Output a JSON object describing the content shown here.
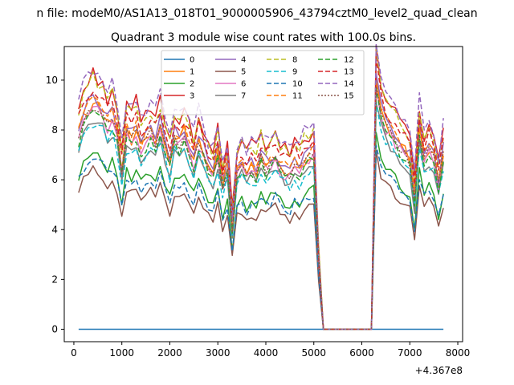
{
  "figure": {
    "suptitle": "n file: modeM0/AS1A13_018T01_9000005906_43794cztM0_level2_quad_clean",
    "title": "Quadrant 3 module wise count rates with 100.0s bins."
  },
  "chart_data": {
    "type": "line",
    "title": "Quadrant 3 module wise count rates with 100.0s bins.",
    "xlabel": "",
    "ylabel": "",
    "x_offset_label": "+4.367e8",
    "xlim": [
      -200,
      8100
    ],
    "ylim": [
      -0.5,
      11.35
    ],
    "xticks": [
      0,
      1000,
      2000,
      3000,
      4000,
      5000,
      6000,
      7000,
      8000
    ],
    "xtick_labels": [
      "0",
      "1000",
      "2000",
      "3000",
      "4000",
      "5000",
      "6000",
      "7000",
      "8000"
    ],
    "yticks": [
      0,
      2,
      4,
      6,
      8,
      10
    ],
    "ytick_labels": [
      "0",
      "2",
      "4",
      "6",
      "8",
      "10"
    ],
    "grid": false,
    "legend_position": "upper center",
    "legend_columns": 4,
    "base_shape": {
      "x": [
        100,
        200,
        300,
        400,
        500,
        600,
        700,
        800,
        900,
        1000,
        1100,
        1200,
        1300,
        1400,
        1500,
        1600,
        1700,
        1800,
        1900,
        2000,
        2100,
        2200,
        2300,
        2400,
        2500,
        2600,
        2700,
        2800,
        2900,
        3000,
        3100,
        3200,
        3300,
        3400,
        3500,
        3600,
        3700,
        3800,
        3900,
        4000,
        4100,
        4200,
        4300,
        4400,
        4500,
        4600,
        4700,
        4800,
        4900,
        5000,
        5100,
        5200,
        5300,
        5400,
        5500,
        5600,
        5700,
        5800,
        5900,
        6000,
        6100,
        6200,
        6300,
        6400,
        6500,
        6600,
        6700,
        6800,
        6900,
        7000,
        7100,
        7200,
        7300,
        7400,
        7500,
        7600,
        7700
      ],
      "y": [
        5.5,
        6.0,
        6.2,
        6.4,
        6.3,
        6.1,
        5.8,
        6.0,
        5.6,
        4.5,
        5.6,
        5.4,
        5.7,
        5.2,
        5.4,
        5.6,
        5.3,
        5.7,
        5.2,
        4.7,
        5.5,
        5.3,
        5.6,
        5.1,
        4.8,
        5.4,
        5.0,
        4.6,
        4.4,
        5.0,
        4.1,
        4.6,
        2.9,
        4.5,
        4.7,
        4.4,
        4.6,
        4.5,
        4.9,
        4.6,
        4.7,
        4.9,
        4.6,
        4.5,
        4.4,
        4.7,
        4.5,
        4.8,
        4.9,
        5.0,
        2.0,
        0.0,
        0.0,
        0.0,
        0.0,
        0.0,
        0.0,
        0.0,
        0.0,
        0.0,
        0.0,
        0.0,
        7.0,
        6.2,
        5.8,
        5.6,
        5.4,
        5.2,
        5.0,
        4.8,
        3.7,
        5.6,
        4.9,
        5.1,
        4.9,
        4.1,
        5.0
      ]
    },
    "series": [
      {
        "name": "0",
        "color": "#1f77b4",
        "dash": "",
        "constant": 0
      },
      {
        "name": "1",
        "color": "#ff7f0e",
        "dash": "",
        "scale": 1.42,
        "seed": 1
      },
      {
        "name": "2",
        "color": "#2ca02c",
        "dash": "",
        "scale": 1.12,
        "seed": 2
      },
      {
        "name": "3",
        "color": "#d62728",
        "dash": "",
        "scale": 1.6,
        "seed": 3
      },
      {
        "name": "4",
        "color": "#9467bd",
        "dash": "",
        "scale": 1.46,
        "seed": 4
      },
      {
        "name": "5",
        "color": "#8c564b",
        "dash": "",
        "scale": 1.0,
        "seed": 5
      },
      {
        "name": "6",
        "color": "#e377c2",
        "dash": "",
        "scale": 1.38,
        "seed": 6
      },
      {
        "name": "7",
        "color": "#7f7f7f",
        "dash": "",
        "scale": 1.32,
        "seed": 7
      },
      {
        "name": "8",
        "color": "#bcbd22",
        "dash": "6,3",
        "scale": 1.58,
        "seed": 8
      },
      {
        "name": "9",
        "color": "#17becf",
        "dash": "6,3",
        "scale": 1.3,
        "seed": 9
      },
      {
        "name": "10",
        "color": "#1f77b4",
        "dash": "6,3",
        "scale": 1.08,
        "seed": 10
      },
      {
        "name": "11",
        "color": "#ff7f0e",
        "dash": "6,3",
        "scale": 1.44,
        "seed": 11
      },
      {
        "name": "12",
        "color": "#2ca02c",
        "dash": "6,3",
        "scale": 1.36,
        "seed": 12
      },
      {
        "name": "13",
        "color": "#d62728",
        "dash": "6,3",
        "scale": 1.52,
        "seed": 13
      },
      {
        "name": "14",
        "color": "#9467bd",
        "dash": "6,3",
        "scale": 1.64,
        "seed": 14
      },
      {
        "name": "15",
        "color": "#8c564b",
        "dash": "2,2",
        "scale": 1.4,
        "seed": 15
      }
    ]
  }
}
